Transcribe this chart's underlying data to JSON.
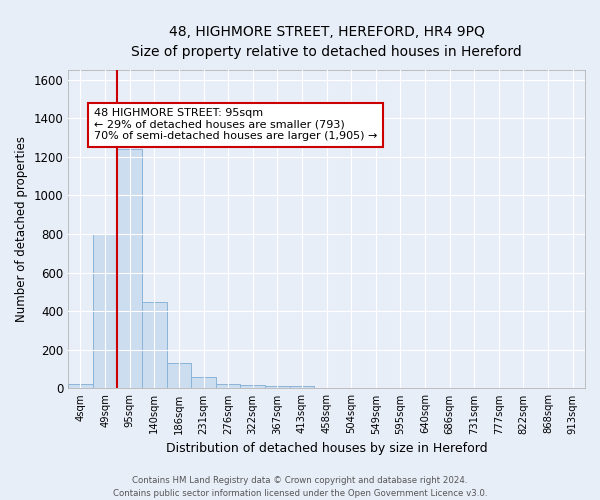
{
  "title": "48, HIGHMORE STREET, HEREFORD, HR4 9PQ",
  "subtitle": "Size of property relative to detached houses in Hereford",
  "xlabel": "Distribution of detached houses by size in Hereford",
  "ylabel": "Number of detached properties",
  "bin_labels": [
    "4sqm",
    "49sqm",
    "95sqm",
    "140sqm",
    "186sqm",
    "231sqm",
    "276sqm",
    "322sqm",
    "367sqm",
    "413sqm",
    "458sqm",
    "504sqm",
    "549sqm",
    "595sqm",
    "640sqm",
    "686sqm",
    "731sqm",
    "777sqm",
    "822sqm",
    "868sqm",
    "913sqm"
  ],
  "bar_values": [
    25,
    800,
    1240,
    450,
    130,
    60,
    25,
    18,
    15,
    15,
    0,
    0,
    0,
    0,
    0,
    0,
    0,
    0,
    0,
    0,
    0
  ],
  "bar_color": "#ccddf0",
  "bar_edge_color": "#8ab4d8",
  "ylim": [
    0,
    1650
  ],
  "yticks": [
    0,
    200,
    400,
    600,
    800,
    1000,
    1200,
    1400,
    1600
  ],
  "property_line_x": 2,
  "property_line_color": "#cc0000",
  "annotation_text": "48 HIGHMORE STREET: 95sqm\n← 29% of detached houses are smaller (793)\n70% of semi-detached houses are larger (1,905) →",
  "annotation_box_color": "#ffffff",
  "annotation_box_edge_color": "#cc0000",
  "footer_text": "Contains HM Land Registry data © Crown copyright and database right 2024.\nContains public sector information licensed under the Open Government Licence v3.0.",
  "background_color": "#e8eef8",
  "grid_color": "#ffffff"
}
